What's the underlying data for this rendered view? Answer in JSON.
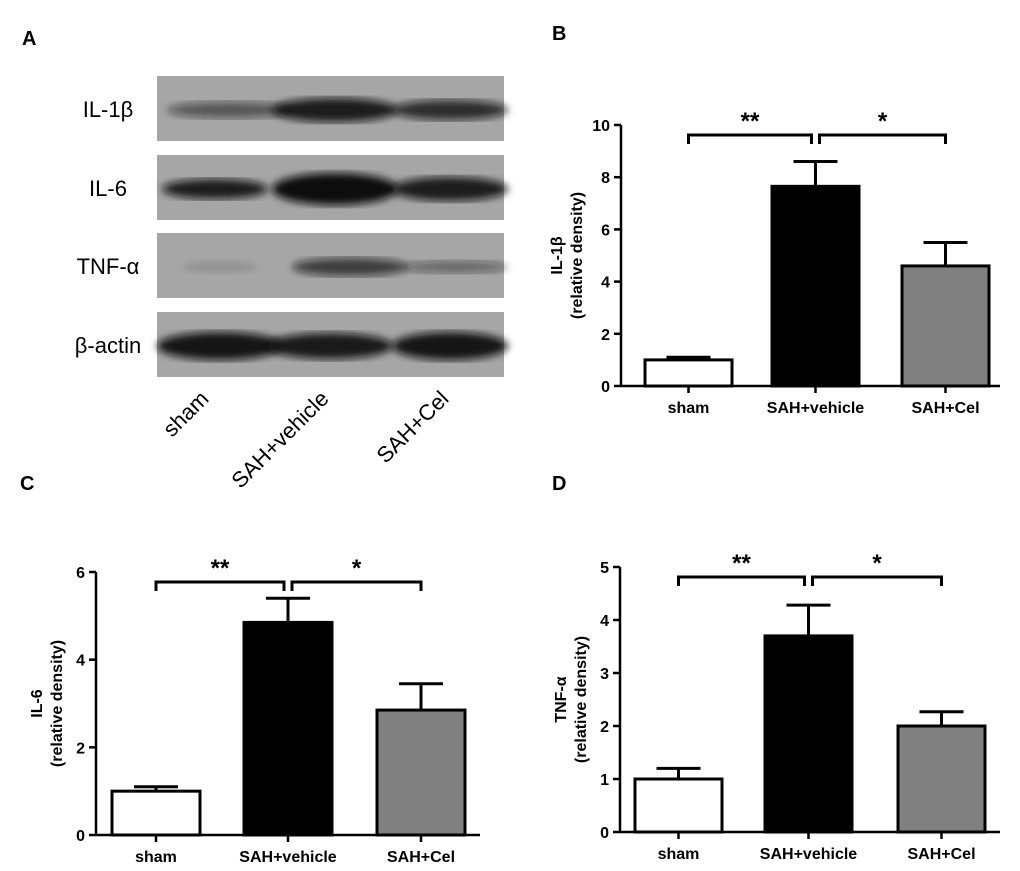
{
  "panel_labels": [
    "A",
    "B",
    "C",
    "D"
  ],
  "blot": {
    "rows": [
      "IL-1β",
      "IL-6",
      "TNF-α",
      "β-actin"
    ],
    "lanes": [
      "sham",
      "SAH+vehicle",
      "SAH+Cel"
    ]
  },
  "chart_data": [
    {
      "type": "bar",
      "panel": "B",
      "categories": [
        "sham",
        "SAH+vehicle",
        "SAH+Cel"
      ],
      "values": [
        1.0,
        7.65,
        4.6
      ],
      "errors_upper": [
        1.1,
        8.6,
        5.5
      ],
      "ylabel": [
        "IL-1β",
        "(relative density)"
      ],
      "ylim": [
        0,
        10
      ],
      "yticks": [
        0,
        2,
        4,
        6,
        8,
        10
      ],
      "colors": [
        "#ffffff",
        "#000000",
        "#808080"
      ],
      "significance": [
        {
          "from": 0,
          "to": 1,
          "label": "**"
        },
        {
          "from": 1,
          "to": 2,
          "label": "*"
        }
      ]
    },
    {
      "type": "bar",
      "panel": "C",
      "categories": [
        "sham",
        "SAH+vehicle",
        "SAH+Cel"
      ],
      "values": [
        1.0,
        4.85,
        2.85
      ],
      "errors_upper": [
        1.1,
        5.4,
        3.45
      ],
      "ylabel": [
        "IL-6",
        "(relative density)"
      ],
      "ylim": [
        0,
        6
      ],
      "yticks": [
        0,
        2,
        4,
        6
      ],
      "colors": [
        "#ffffff",
        "#000000",
        "#808080"
      ],
      "significance": [
        {
          "from": 0,
          "to": 1,
          "label": "**"
        },
        {
          "from": 1,
          "to": 2,
          "label": "*"
        }
      ]
    },
    {
      "type": "bar",
      "panel": "D",
      "categories": [
        "sham",
        "SAH+vehicle",
        "SAH+Cel"
      ],
      "values": [
        1.0,
        3.7,
        2.0
      ],
      "errors_upper": [
        1.2,
        4.28,
        2.27
      ],
      "ylabel": [
        "TNF-α",
        "(relative density)"
      ],
      "ylim": [
        0,
        5
      ],
      "yticks": [
        0,
        1,
        2,
        3,
        4,
        5
      ],
      "colors": [
        "#ffffff",
        "#000000",
        "#808080"
      ],
      "significance": [
        {
          "from": 0,
          "to": 1,
          "label": "**"
        },
        {
          "from": 1,
          "to": 2,
          "label": "*"
        }
      ]
    }
  ]
}
